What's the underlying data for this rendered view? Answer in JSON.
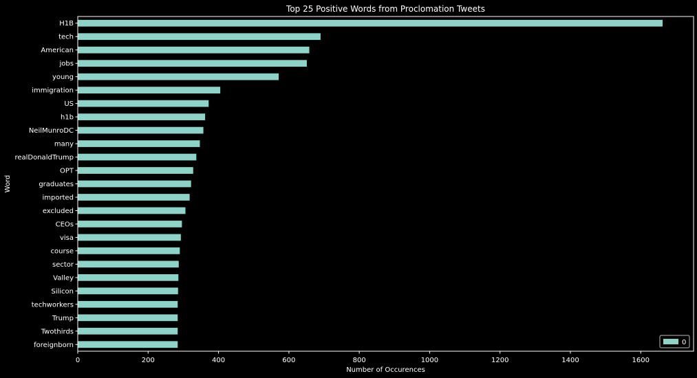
{
  "chart_data": {
    "type": "bar",
    "orientation": "horizontal",
    "title": "Top 25 Positive Words from Proclomation Tweets",
    "xlabel": "Number of Occurences",
    "ylabel": "Word",
    "xlim": [
      0,
      1750
    ],
    "xticks": [
      0,
      200,
      400,
      600,
      800,
      1000,
      1200,
      1400,
      1600
    ],
    "grid": false,
    "legend": {
      "position": "bottom-right",
      "entries": [
        "0"
      ]
    },
    "bar_color": "#8dd3c7",
    "background": "#000000",
    "categories": [
      "H1B",
      "tech",
      "American",
      "jobs",
      "young",
      "immigration",
      "US",
      "h1b",
      "NeilMunroDC",
      "many",
      "realDonaldTrump",
      "OPT",
      "graduates",
      "imported",
      "excluded",
      "CEOs",
      "visa",
      "course",
      "sector",
      "Valley",
      "Silicon",
      "techworkers",
      "Trump",
      "Twothirds",
      "foreignborn"
    ],
    "series": [
      {
        "name": "0",
        "values": [
          1662,
          690,
          658,
          651,
          571,
          405,
          372,
          362,
          357,
          347,
          337,
          328,
          322,
          318,
          306,
          296,
          293,
          290,
          287,
          286,
          285,
          284,
          284,
          284,
          284
        ]
      }
    ]
  }
}
